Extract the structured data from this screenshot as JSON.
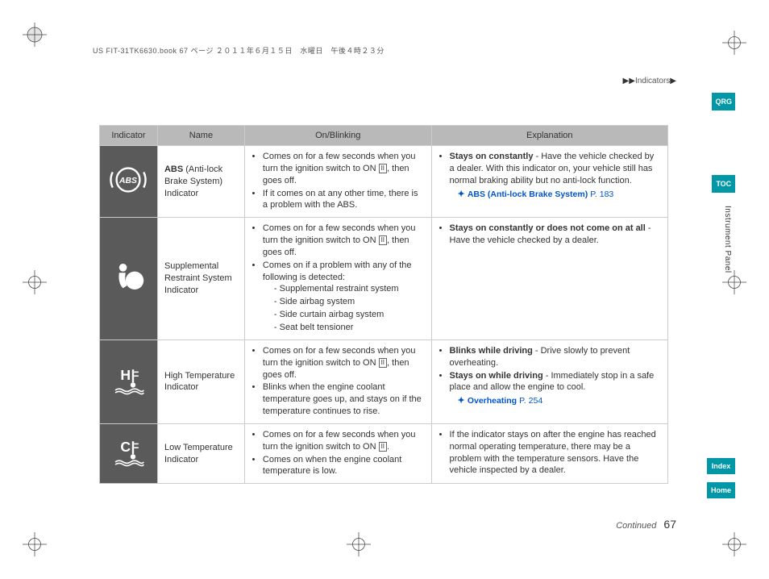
{
  "header": {
    "book_line": "US FIT-31TK6630.book  67 ページ  ２０１１年６月１５日　水曜日　午後４時２３分"
  },
  "breadcrumb": {
    "arrows": "▶▶",
    "label": "Indicators",
    "tail": "▶"
  },
  "tabs": {
    "qrg": "QRG",
    "toc": "TOC",
    "index": "Index",
    "home": "Home"
  },
  "section_label": "Instrument Panel",
  "table": {
    "headers": {
      "indicator": "Indicator",
      "name": "Name",
      "onblink": "On/Blinking",
      "explanation": "Explanation"
    },
    "rows": [
      {
        "icon": "abs",
        "name_bold": "ABS",
        "name_rest": " (Anti-lock Brake System) Indicator",
        "onblink": [
          {
            "text_pre": "Comes on for a few seconds when you turn the ignition switch to ON ",
            "key": "II",
            "text_post": ", then goes off."
          },
          {
            "text": "If it comes on at any other time, there is a problem with the ABS."
          }
        ],
        "expl": [
          {
            "bold": "Stays on constantly",
            "rest": " - Have the vehicle checked by a dealer. With this indicator on, your vehicle still has normal braking ability but no anti-lock function."
          }
        ],
        "ref": {
          "label": "ABS (Anti-lock Brake System)",
          "page": "P. 183"
        }
      },
      {
        "icon": "srs",
        "name_rest": "Supplemental Restraint System Indicator",
        "onblink": [
          {
            "text_pre": "Comes on for a few seconds when you turn the ignition switch to ON ",
            "key": "II",
            "text_post": ", then goes off."
          },
          {
            "text": "Comes on if a problem with any of the following is detected:",
            "sub": [
              "Supplemental restraint system",
              "Side airbag system",
              "Side curtain airbag system",
              "Seat belt tensioner"
            ]
          }
        ],
        "expl": [
          {
            "bold": "Stays on constantly or does not come on at all",
            "rest": " - Have the vehicle checked by a dealer."
          }
        ]
      },
      {
        "icon": "hitemp",
        "name_rest": "High Temperature Indicator",
        "onblink": [
          {
            "text_pre": "Comes on for a few seconds when you turn the ignition switch to ON ",
            "key": "II",
            "text_post": ", then goes off."
          },
          {
            "text": "Blinks when the engine coolant temperature goes up, and stays on if the temperature continues to rise."
          }
        ],
        "expl": [
          {
            "bold": "Blinks while driving",
            "rest": " - Drive slowly to prevent overheating."
          },
          {
            "bold": "Stays on while driving",
            "rest": " - Immediately stop in a safe place and allow the engine to cool."
          }
        ],
        "ref": {
          "label": "Overheating",
          "page": "P. 254"
        }
      },
      {
        "icon": "lotemp",
        "name_rest": "Low Temperature Indicator",
        "onblink": [
          {
            "text_pre": "Comes on for a few seconds when you turn the ignition switch to ON ",
            "key": "II",
            "text_post": "."
          },
          {
            "text": "Comes on when the engine coolant temperature is low."
          }
        ],
        "expl": [
          {
            "rest": "If the indicator stays on after the engine has reached normal operating temperature, there may be a problem with the temperature sensors. Have the vehicle inspected by a dealer."
          }
        ]
      }
    ]
  },
  "footer": {
    "continued": "Continued",
    "page": "67"
  },
  "colors": {
    "tab_bg": "#0097a7",
    "header_bg": "#b9b9b9",
    "icon_cell_bg": "#5a5a5a",
    "link": "#0055cc"
  }
}
